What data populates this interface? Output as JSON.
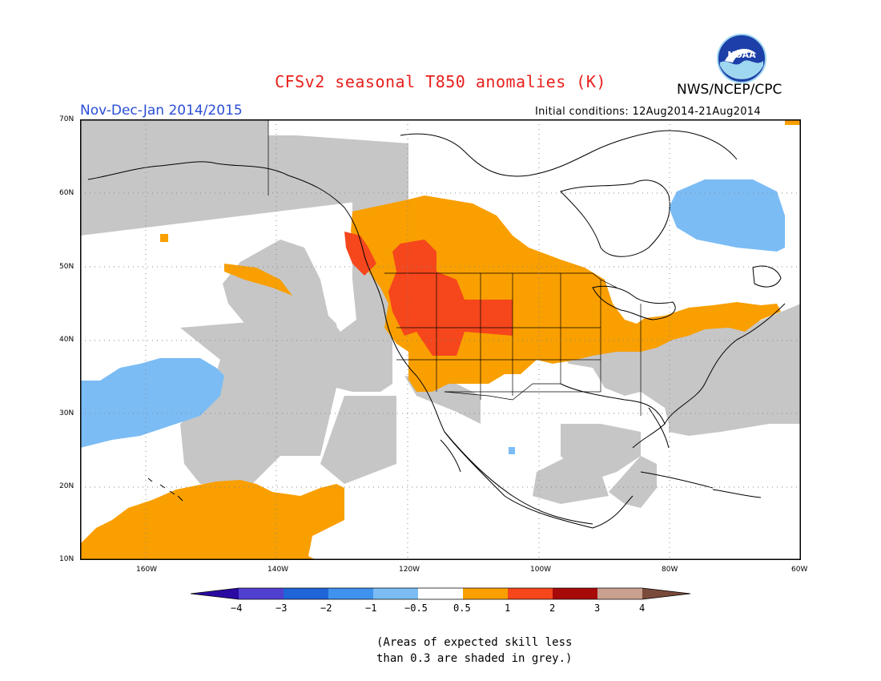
{
  "title": "CFSv2 seasonal T850 anomalies (K)",
  "agency": "NWS/NCEP/CPC",
  "logo_text": "NOAA",
  "season": "Nov-Dec-Jan 2014/2015",
  "initial_conditions": "Initial conditions: 12Aug2014-21Aug2014",
  "map": {
    "lon_range": [
      -170,
      -60
    ],
    "lat_range": [
      10,
      70
    ],
    "lat_ticks": [
      "70N",
      "60N",
      "50N",
      "40N",
      "30N",
      "20N",
      "10N"
    ],
    "lon_ticks": [
      "160W",
      "140W",
      "120W",
      "100W",
      "80W",
      "60W"
    ],
    "grid": "dotted",
    "colors": {
      "low_skill_grey": "#c6c6c6",
      "anom_0_5_to_1": "#f99f00",
      "anom_1_to_2": "#f5461c",
      "anom_neg_1_to_neg_0_5": "#7bbcf5",
      "land_outline": "#000000"
    }
  },
  "colorbar": {
    "colors": [
      "#2a0aa0",
      "#5040d0",
      "#1f65d8",
      "#3f92ee",
      "#7bbcf5",
      "#ffffff",
      "#f99f00",
      "#f5461c",
      "#a80a0a",
      "#c9a090",
      "#7a4a3a"
    ],
    "labels": [
      "−4",
      "−3",
      "−2",
      "−1",
      "−0.5",
      "0.5",
      "1",
      "2",
      "3",
      "4"
    ]
  },
  "footnote": [
    "(Areas of expected skill less",
    "than 0.3 are shaded in grey.)"
  ]
}
